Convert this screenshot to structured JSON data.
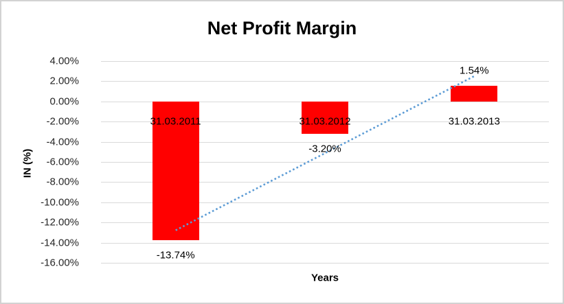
{
  "chart_data": {
    "type": "bar",
    "title": "Net Profit Margin",
    "xlabel": "Years",
    "ylabel": "IN (%)",
    "categories": [
      "31.03.2011",
      "31.03.2012",
      "31.03.2013"
    ],
    "values": [
      -13.74,
      -3.2,
      1.54
    ],
    "data_labels": [
      "-13.74%",
      "-3.20%",
      "1.54%"
    ],
    "ylim": [
      -16,
      4
    ],
    "ytick_step": 2,
    "ytick_labels": [
      "4.00%",
      "2.00%",
      "0.00%",
      "-2.00%",
      "-4.00%",
      "-6.00%",
      "-8.00%",
      "-10.00%",
      "-12.00%",
      "-14.00%",
      "-16.00%"
    ],
    "grid": "horizontal",
    "legend": "none",
    "bar_color": "#ff0000",
    "gridline_color": "#d9d9d9",
    "trendline": {
      "type": "linear",
      "style": "dotted",
      "color": "#5b9bd5"
    }
  }
}
